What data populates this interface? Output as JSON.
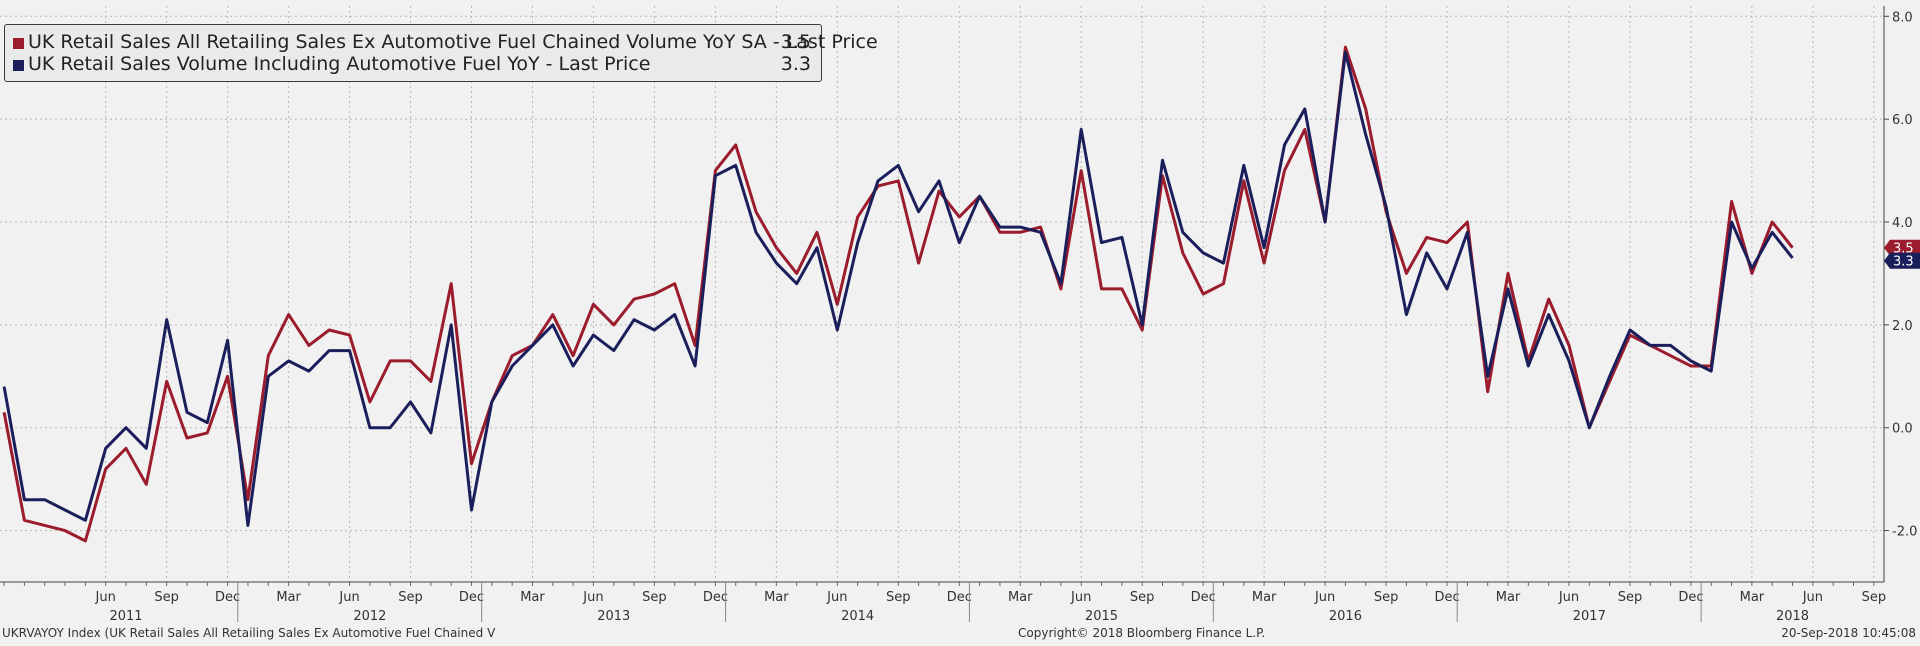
{
  "chart_data": {
    "type": "line",
    "x_start": "2011-01",
    "x_end": "2018-09",
    "x_month_labels": [
      {
        "label": "Jun",
        "date": "2011-06"
      },
      {
        "label": "Sep",
        "date": "2011-09"
      },
      {
        "label": "Dec",
        "date": "2011-12"
      },
      {
        "label": "Mar",
        "date": "2012-03"
      },
      {
        "label": "Jun",
        "date": "2012-06"
      },
      {
        "label": "Sep",
        "date": "2012-09"
      },
      {
        "label": "Dec",
        "date": "2012-12"
      },
      {
        "label": "Mar",
        "date": "2013-03"
      },
      {
        "label": "Jun",
        "date": "2013-06"
      },
      {
        "label": "Sep",
        "date": "2013-09"
      },
      {
        "label": "Dec",
        "date": "2013-12"
      },
      {
        "label": "Mar",
        "date": "2014-03"
      },
      {
        "label": "Jun",
        "date": "2014-06"
      },
      {
        "label": "Sep",
        "date": "2014-09"
      },
      {
        "label": "Dec",
        "date": "2014-12"
      },
      {
        "label": "Mar",
        "date": "2015-03"
      },
      {
        "label": "Jun",
        "date": "2015-06"
      },
      {
        "label": "Sep",
        "date": "2015-09"
      },
      {
        "label": "Dec",
        "date": "2015-12"
      },
      {
        "label": "Mar",
        "date": "2016-03"
      },
      {
        "label": "Jun",
        "date": "2016-06"
      },
      {
        "label": "Sep",
        "date": "2016-09"
      },
      {
        "label": "Dec",
        "date": "2016-12"
      },
      {
        "label": "Mar",
        "date": "2017-03"
      },
      {
        "label": "Jun",
        "date": "2017-06"
      },
      {
        "label": "Sep",
        "date": "2017-09"
      },
      {
        "label": "Dec",
        "date": "2017-12"
      },
      {
        "label": "Mar",
        "date": "2018-03"
      },
      {
        "label": "Jun",
        "date": "2018-06"
      },
      {
        "label": "Sep",
        "date": "2018-09"
      }
    ],
    "x_year_labels": [
      {
        "label": "2011",
        "date": "2011-07"
      },
      {
        "label": "2012",
        "date": "2012-07"
      },
      {
        "label": "2013",
        "date": "2013-07"
      },
      {
        "label": "2014",
        "date": "2014-07"
      },
      {
        "label": "2015",
        "date": "2015-07"
      },
      {
        "label": "2016",
        "date": "2016-07"
      },
      {
        "label": "2017",
        "date": "2017-07"
      },
      {
        "label": "2018",
        "date": "2018-05"
      }
    ],
    "y_ticks": [
      -2,
      0,
      2,
      4,
      6,
      8
    ],
    "y_tick_labels": [
      "-2.0",
      "0.0",
      "2.0",
      "4.0",
      "6.0",
      "8.0"
    ],
    "ylim": [
      -3,
      8.2
    ],
    "grid": true,
    "legend_position": "top-left",
    "series": [
      {
        "name": "UK Retail Sales All Retailing Sales Ex Automotive Fuel Chained Volume YoY SA - Last Price",
        "last_price": "3.5",
        "color": "#9b1c2c",
        "start": "2011-01",
        "values": [
          0.3,
          -1.8,
          -1.9,
          -2.0,
          -2.2,
          -0.8,
          -0.4,
          -1.1,
          0.9,
          -0.2,
          -0.1,
          1.0,
          -1.4,
          1.4,
          2.2,
          1.6,
          1.9,
          1.8,
          0.5,
          1.3,
          1.3,
          0.9,
          2.8,
          -0.7,
          0.5,
          1.4,
          1.6,
          2.2,
          1.4,
          2.4,
          2.0,
          2.5,
          2.6,
          2.8,
          1.6,
          5.0,
          5.5,
          4.2,
          3.5,
          3.0,
          3.8,
          2.4,
          4.1,
          4.7,
          4.8,
          3.2,
          4.6,
          4.1,
          4.5,
          3.8,
          3.8,
          3.9,
          2.7,
          5.0,
          2.7,
          2.7,
          1.9,
          4.9,
          3.4,
          2.6,
          2.8,
          4.8,
          3.2,
          5.0,
          5.8,
          4.0,
          7.4,
          6.2,
          4.2,
          3.0,
          3.7,
          3.6,
          4.0,
          0.7,
          3.0,
          1.3,
          2.5,
          1.6,
          0.0,
          0.9,
          1.8,
          1.6,
          1.4,
          1.2,
          1.2,
          4.4,
          3.0,
          4.0,
          3.5
        ]
      },
      {
        "name": "UK Retail Sales Volume Including Automotive Fuel YoY - Last Price",
        "last_price": "3.3",
        "color": "#1a1f5c",
        "start": "2011-01",
        "values": [
          0.8,
          -1.4,
          -1.4,
          -1.6,
          -1.8,
          -0.4,
          0.0,
          -0.4,
          2.1,
          0.3,
          0.1,
          1.7,
          -1.9,
          1.0,
          1.3,
          1.1,
          1.5,
          1.5,
          0.0,
          0.0,
          0.5,
          -0.1,
          2.0,
          -1.6,
          0.5,
          1.2,
          1.6,
          2.0,
          1.2,
          1.8,
          1.5,
          2.1,
          1.9,
          2.2,
          1.2,
          4.9,
          5.1,
          3.8,
          3.2,
          2.8,
          3.5,
          1.9,
          3.6,
          4.8,
          5.1,
          4.2,
          4.8,
          3.6,
          4.5,
          3.9,
          3.9,
          3.8,
          2.8,
          5.8,
          3.6,
          3.7,
          2.0,
          5.2,
          3.8,
          3.4,
          3.2,
          5.1,
          3.5,
          5.5,
          6.2,
          4.0,
          7.3,
          5.7,
          4.3,
          2.2,
          3.4,
          2.7,
          3.8,
          1.0,
          2.7,
          1.2,
          2.2,
          1.3,
          0.0,
          1.0,
          1.9,
          1.6,
          1.6,
          1.3,
          1.1,
          4.0,
          3.1,
          3.8,
          3.3
        ]
      }
    ]
  },
  "legend": {
    "series1": {
      "label": "UK Retail Sales All Retailing Sales Ex Automotive Fuel Chained Volume YoY SA - Last Price",
      "value": "3.5",
      "color": "#9b1c2c"
    },
    "series2": {
      "label": "UK Retail Sales Volume Including Automotive Fuel YoY - Last Price",
      "value": "3.3",
      "color": "#1a1f5c"
    }
  },
  "footer": {
    "left": "UKRVAYOY Index (UK Retail Sales All Retailing Sales Ex Automotive Fuel Chained V",
    "center": "Copyright© 2018 Bloomberg Finance L.P.",
    "right": "20-Sep-2018 10:45:08"
  }
}
